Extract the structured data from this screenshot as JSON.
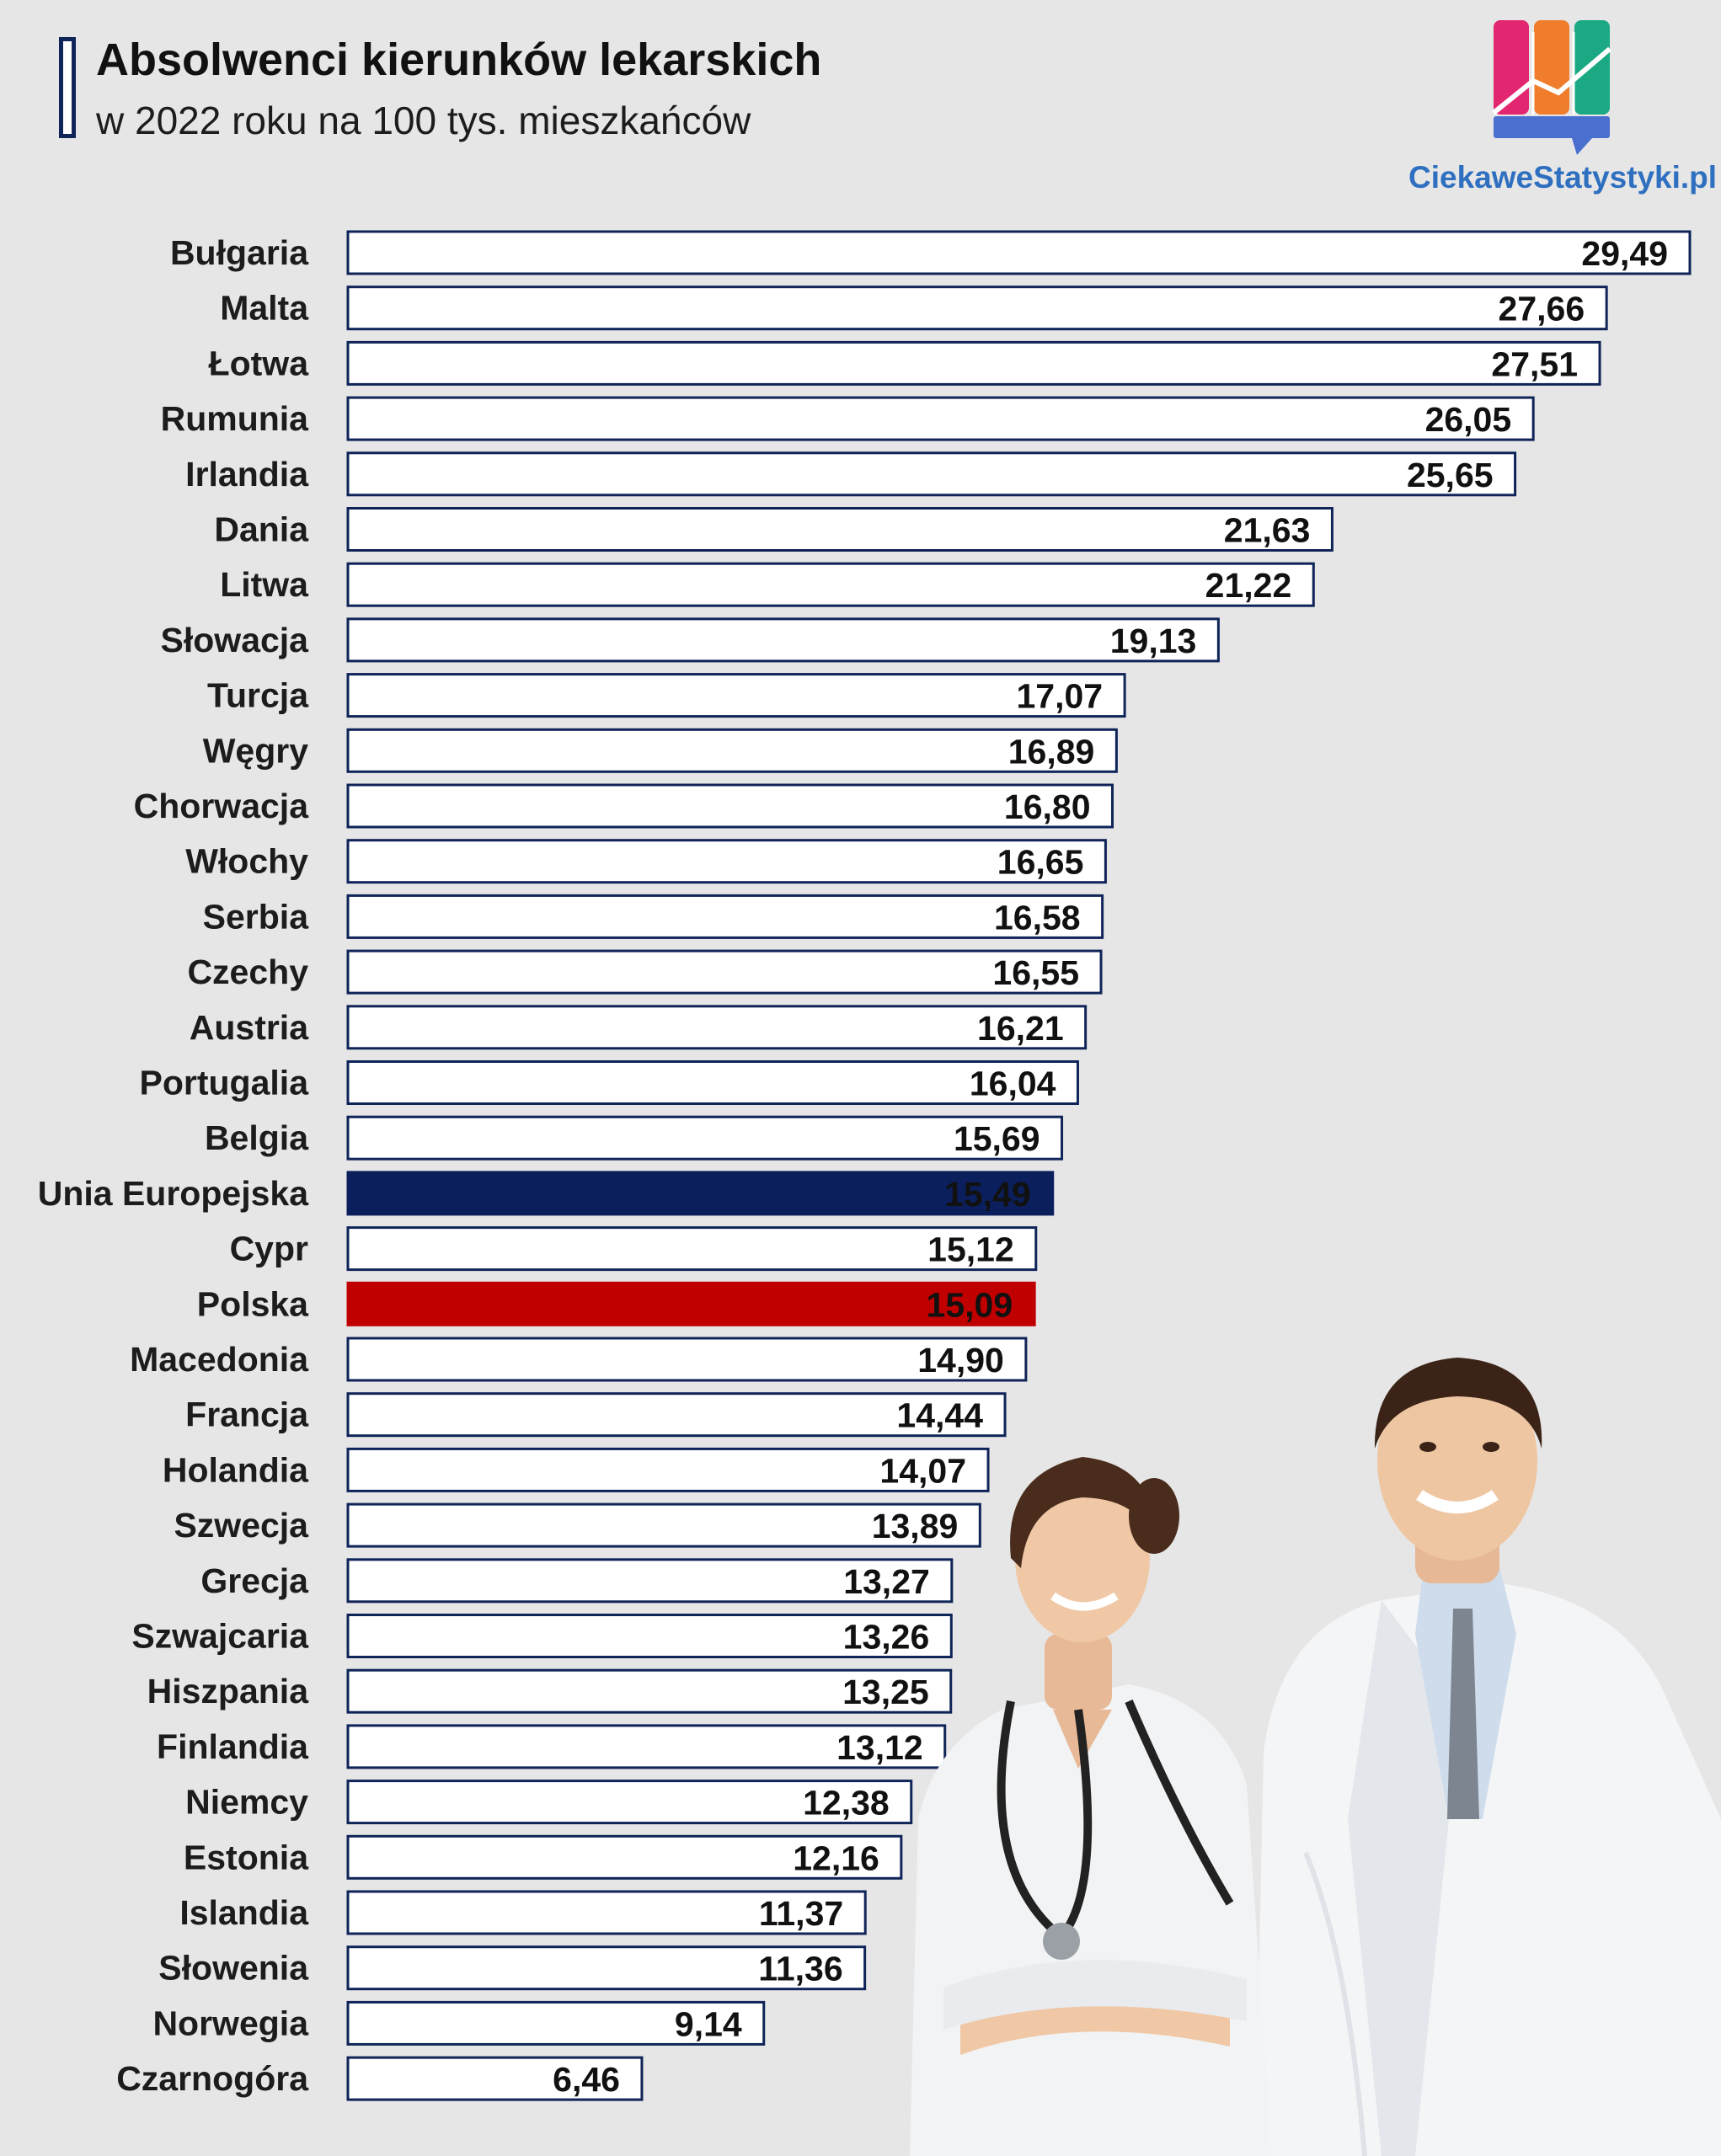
{
  "header": {
    "title": "Absolwenci kierunków lekarskich",
    "subtitle": "w 2022 roku na 100 tys. mieszkańców"
  },
  "brand": {
    "name": "CiekaweStatystyki.pl",
    "icon": "bar-chart-logo-icon",
    "logo_colors": [
      "#e2266f",
      "#f07d2c",
      "#1aa983",
      "#4b6fcf"
    ]
  },
  "illustration": {
    "icon": "doctors-photo"
  },
  "colors": {
    "bar_fill": "#ffffff",
    "bar_border": "#0f2458",
    "eu_highlight": "#0b1f5c",
    "poland_highlight": "#c00000",
    "background": "#e6e6e6"
  },
  "chart_data": {
    "type": "bar",
    "orientation": "horizontal",
    "title": "Absolwenci kierunków lekarskich",
    "subtitle": "w 2022 roku na 100 tys. mieszkańców",
    "xlabel": "",
    "ylabel": "",
    "xlim": [
      0,
      29.49
    ],
    "grid": false,
    "legend": "none",
    "categories": [
      "Bułgaria",
      "Malta",
      "Łotwa",
      "Rumunia",
      "Irlandia",
      "Dania",
      "Litwa",
      "Słowacja",
      "Turcja",
      "Węgry",
      "Chorwacja",
      "Włochy",
      "Serbia",
      "Czechy",
      "Austria",
      "Portugalia",
      "Belgia",
      "Unia Europejska",
      "Cypr",
      "Polska",
      "Macedonia",
      "Francja",
      "Holandia",
      "Szwecja",
      "Grecja",
      "Szwajcaria",
      "Hiszpania",
      "Finlandia",
      "Niemcy",
      "Estonia",
      "Islandia",
      "Słowenia",
      "Norwegia",
      "Czarnogóra"
    ],
    "values": [
      29.49,
      27.66,
      27.51,
      26.05,
      25.65,
      21.63,
      21.22,
      19.13,
      17.07,
      16.89,
      16.8,
      16.65,
      16.58,
      16.55,
      16.21,
      16.04,
      15.69,
      15.49,
      15.12,
      15.09,
      14.9,
      14.44,
      14.07,
      13.89,
      13.27,
      13.26,
      13.25,
      13.12,
      12.38,
      12.16,
      11.37,
      11.36,
      9.14,
      6.46
    ],
    "value_labels": [
      "29,49",
      "27,66",
      "27,51",
      "26,05",
      "25,65",
      "21,63",
      "21,22",
      "19,13",
      "17,07",
      "16,89",
      "16,80",
      "16,65",
      "16,58",
      "16,55",
      "16,21",
      "16,04",
      "15,69",
      "15,49",
      "15,12",
      "15,09",
      "14,90",
      "14,44",
      "14,07",
      "13,89",
      "13,27",
      "13,26",
      "13,25",
      "13,12",
      "12,38",
      "12,16",
      "11,37",
      "11,36",
      "9,14",
      "6,46"
    ],
    "highlights": {
      "Unia Europejska": "#0b1f5c",
      "Polska": "#c00000"
    }
  }
}
